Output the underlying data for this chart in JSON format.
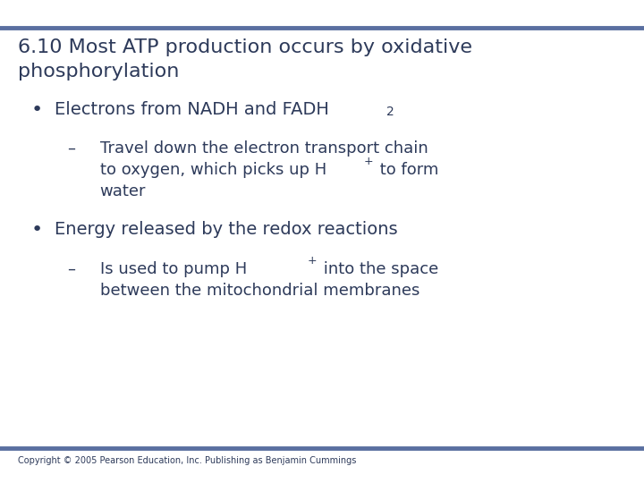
{
  "title_line1": "6.10 Most ATP production occurs by oxidative",
  "title_line2": "phosphorylation",
  "bullet1": "Electrons from NADH and FADH",
  "bullet1_sub": "2",
  "sub1_line1": "Travel down the electron transport chain",
  "sub1_line2": "to oxygen, which picks up H",
  "sub1_sup": "+",
  "sub1_line2b": " to form",
  "sub1_line3": "water",
  "bullet2": "Energy released by the redox reactions",
  "sub2_line1": "Is used to pump H",
  "sub2_sup": "+",
  "sub2_line1b": " into the space",
  "sub2_line2": "between the mitochondrial membranes",
  "copyright": "Copyright © 2005 Pearson Education, Inc. Publishing as Benjamin Cummings",
  "bg_color": "#ffffff",
  "title_color": "#2d3a5a",
  "body_color": "#2d3a5a",
  "line_color": "#5a6fa0",
  "copyright_color": "#2d3a5a",
  "title_fontsize": 16,
  "body_fontsize": 14,
  "sub_fontsize": 13,
  "copyright_fontsize": 7
}
